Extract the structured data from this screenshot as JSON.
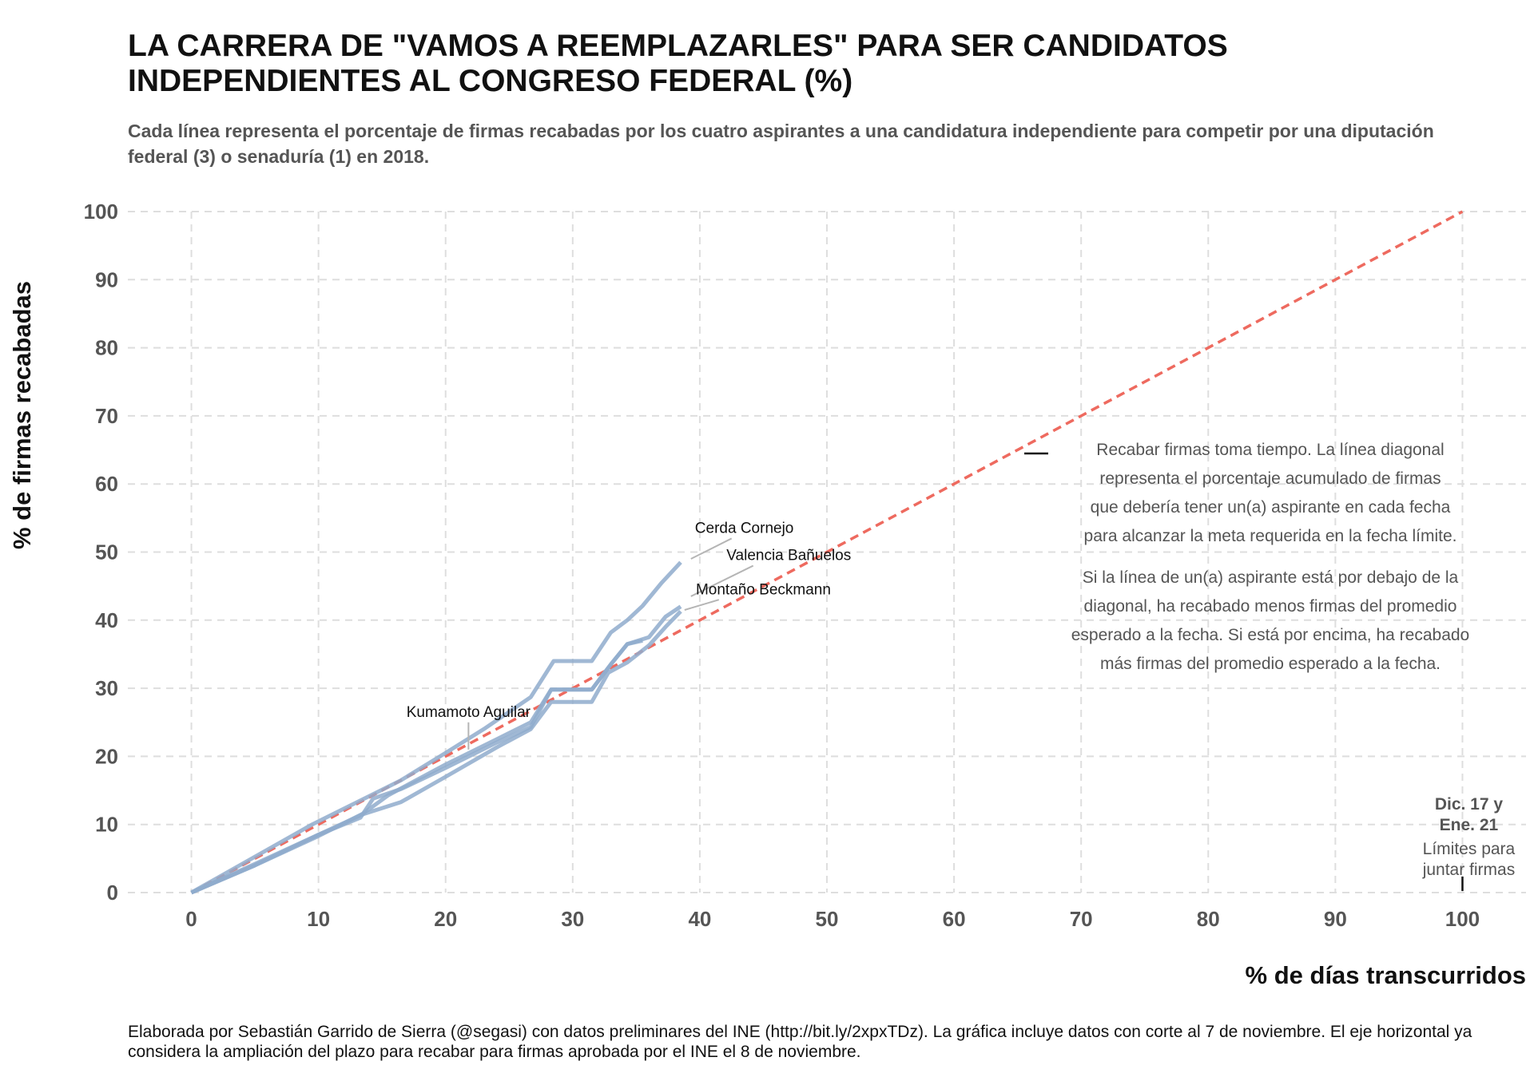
{
  "chart_data": {
    "type": "line",
    "title": "LA CARRERA DE \"VAMOS A REEMPLAZARLES\" PARA SER CANDIDATOS INDEPENDIENTES AL CONGRESO FEDERAL (%)",
    "subtitle": "Cada línea representa el porcentaje de firmas recabadas por los cuatro aspirantes a una candidatura independiente para competir por una diputación federal (3) o senaduría (1) en 2018.",
    "xlabel": "% de días transcurridos",
    "ylabel": "% de firmas recabadas",
    "xlim": [
      -5,
      105
    ],
    "ylim": [
      0,
      100
    ],
    "xticks": [
      0,
      10,
      20,
      30,
      40,
      50,
      60,
      70,
      80,
      90,
      100
    ],
    "yticks": [
      0,
      10,
      20,
      30,
      40,
      50,
      60,
      70,
      80,
      90,
      100
    ],
    "grid": true,
    "series": [
      {
        "name": "Cerda Cornejo",
        "color": "#8fabcd",
        "x": [
          0,
          9.5,
          13.5,
          16.5,
          20,
          23,
          26.7,
          28.5,
          31.5,
          33,
          34.3,
          35.5,
          37,
          38.5
        ],
        "y": [
          0,
          10,
          13.7,
          16.5,
          20.5,
          24,
          28.7,
          34,
          34,
          38.2,
          40,
          42.1,
          45.5,
          48.5
        ]
      },
      {
        "name": "Valencia Bañuelos",
        "color": "#8fabcd",
        "x": [
          0,
          5,
          10,
          13.5,
          15.5,
          20,
          24,
          26.7,
          28.3,
          31.5,
          33,
          34.3,
          36,
          37.3,
          38.5
        ],
        "y": [
          0,
          4,
          8.3,
          11.6,
          14.3,
          18.8,
          22.5,
          25,
          29.8,
          29.8,
          33.5,
          36.5,
          37.5,
          40.5,
          42
        ]
      },
      {
        "name": "Montaño Beckmann",
        "color": "#8fabcd",
        "x": [
          0,
          5,
          10,
          13.5,
          16.5,
          20,
          24,
          26.7,
          28.3,
          31.5,
          32.8,
          34.3,
          36,
          37.3,
          38.5
        ],
        "y": [
          0,
          4,
          8.5,
          11.5,
          13.3,
          17,
          21.3,
          24,
          28,
          28,
          32.3,
          33.8,
          36.3,
          39,
          41.3
        ]
      },
      {
        "name": "Kumamoto Aguilar",
        "color": "#8fabcd",
        "x": [
          0,
          5,
          10,
          13.3,
          14.3,
          16.5,
          20,
          24,
          26.7,
          28.3,
          31.5,
          33,
          34.3,
          35.5
        ],
        "y": [
          0,
          4.2,
          8.5,
          11,
          13.8,
          15.2,
          18.3,
          22,
          24.3,
          29.8,
          29.8,
          33.5,
          36.5,
          37
        ]
      }
    ],
    "reference_line": {
      "x": [
        0,
        100
      ],
      "y": [
        0,
        100
      ],
      "color": "#ee6a5f",
      "style": "dashed"
    },
    "annotation_paragraphs": [
      [
        "Recabar firmas toma tiempo. La línea diagonal",
        "representa el porcentaje acumulado de firmas",
        "que debería tener un(a) aspirante en cada fecha",
        "para alcanzar la meta requerida en la fecha límite."
      ],
      [
        "Si la línea de un(a) aspirante está por debajo de la",
        "diagonal, ha recabado menos firmas del promedio",
        "esperado a la fecha. Si está por encima, ha recabado",
        "más firmas del promedio esperado a la fecha."
      ]
    ],
    "deadline_annotation": {
      "x": 100,
      "bold_lines": [
        "Dic. 17 y",
        "Ene. 21"
      ],
      "lines": [
        "Límites para",
        "juntar firmas"
      ]
    },
    "caption": "Elaborada por Sebastián Garrido de Sierra (@segasi) con datos preliminares del INE (http://bit.ly/2xpxTDz). La gráfica incluye datos con corte al 7 de noviembre. El eje horizontal ya considera la ampliación del plazo para recabar para firmas aprobada por el INE el 8 de noviembre."
  }
}
